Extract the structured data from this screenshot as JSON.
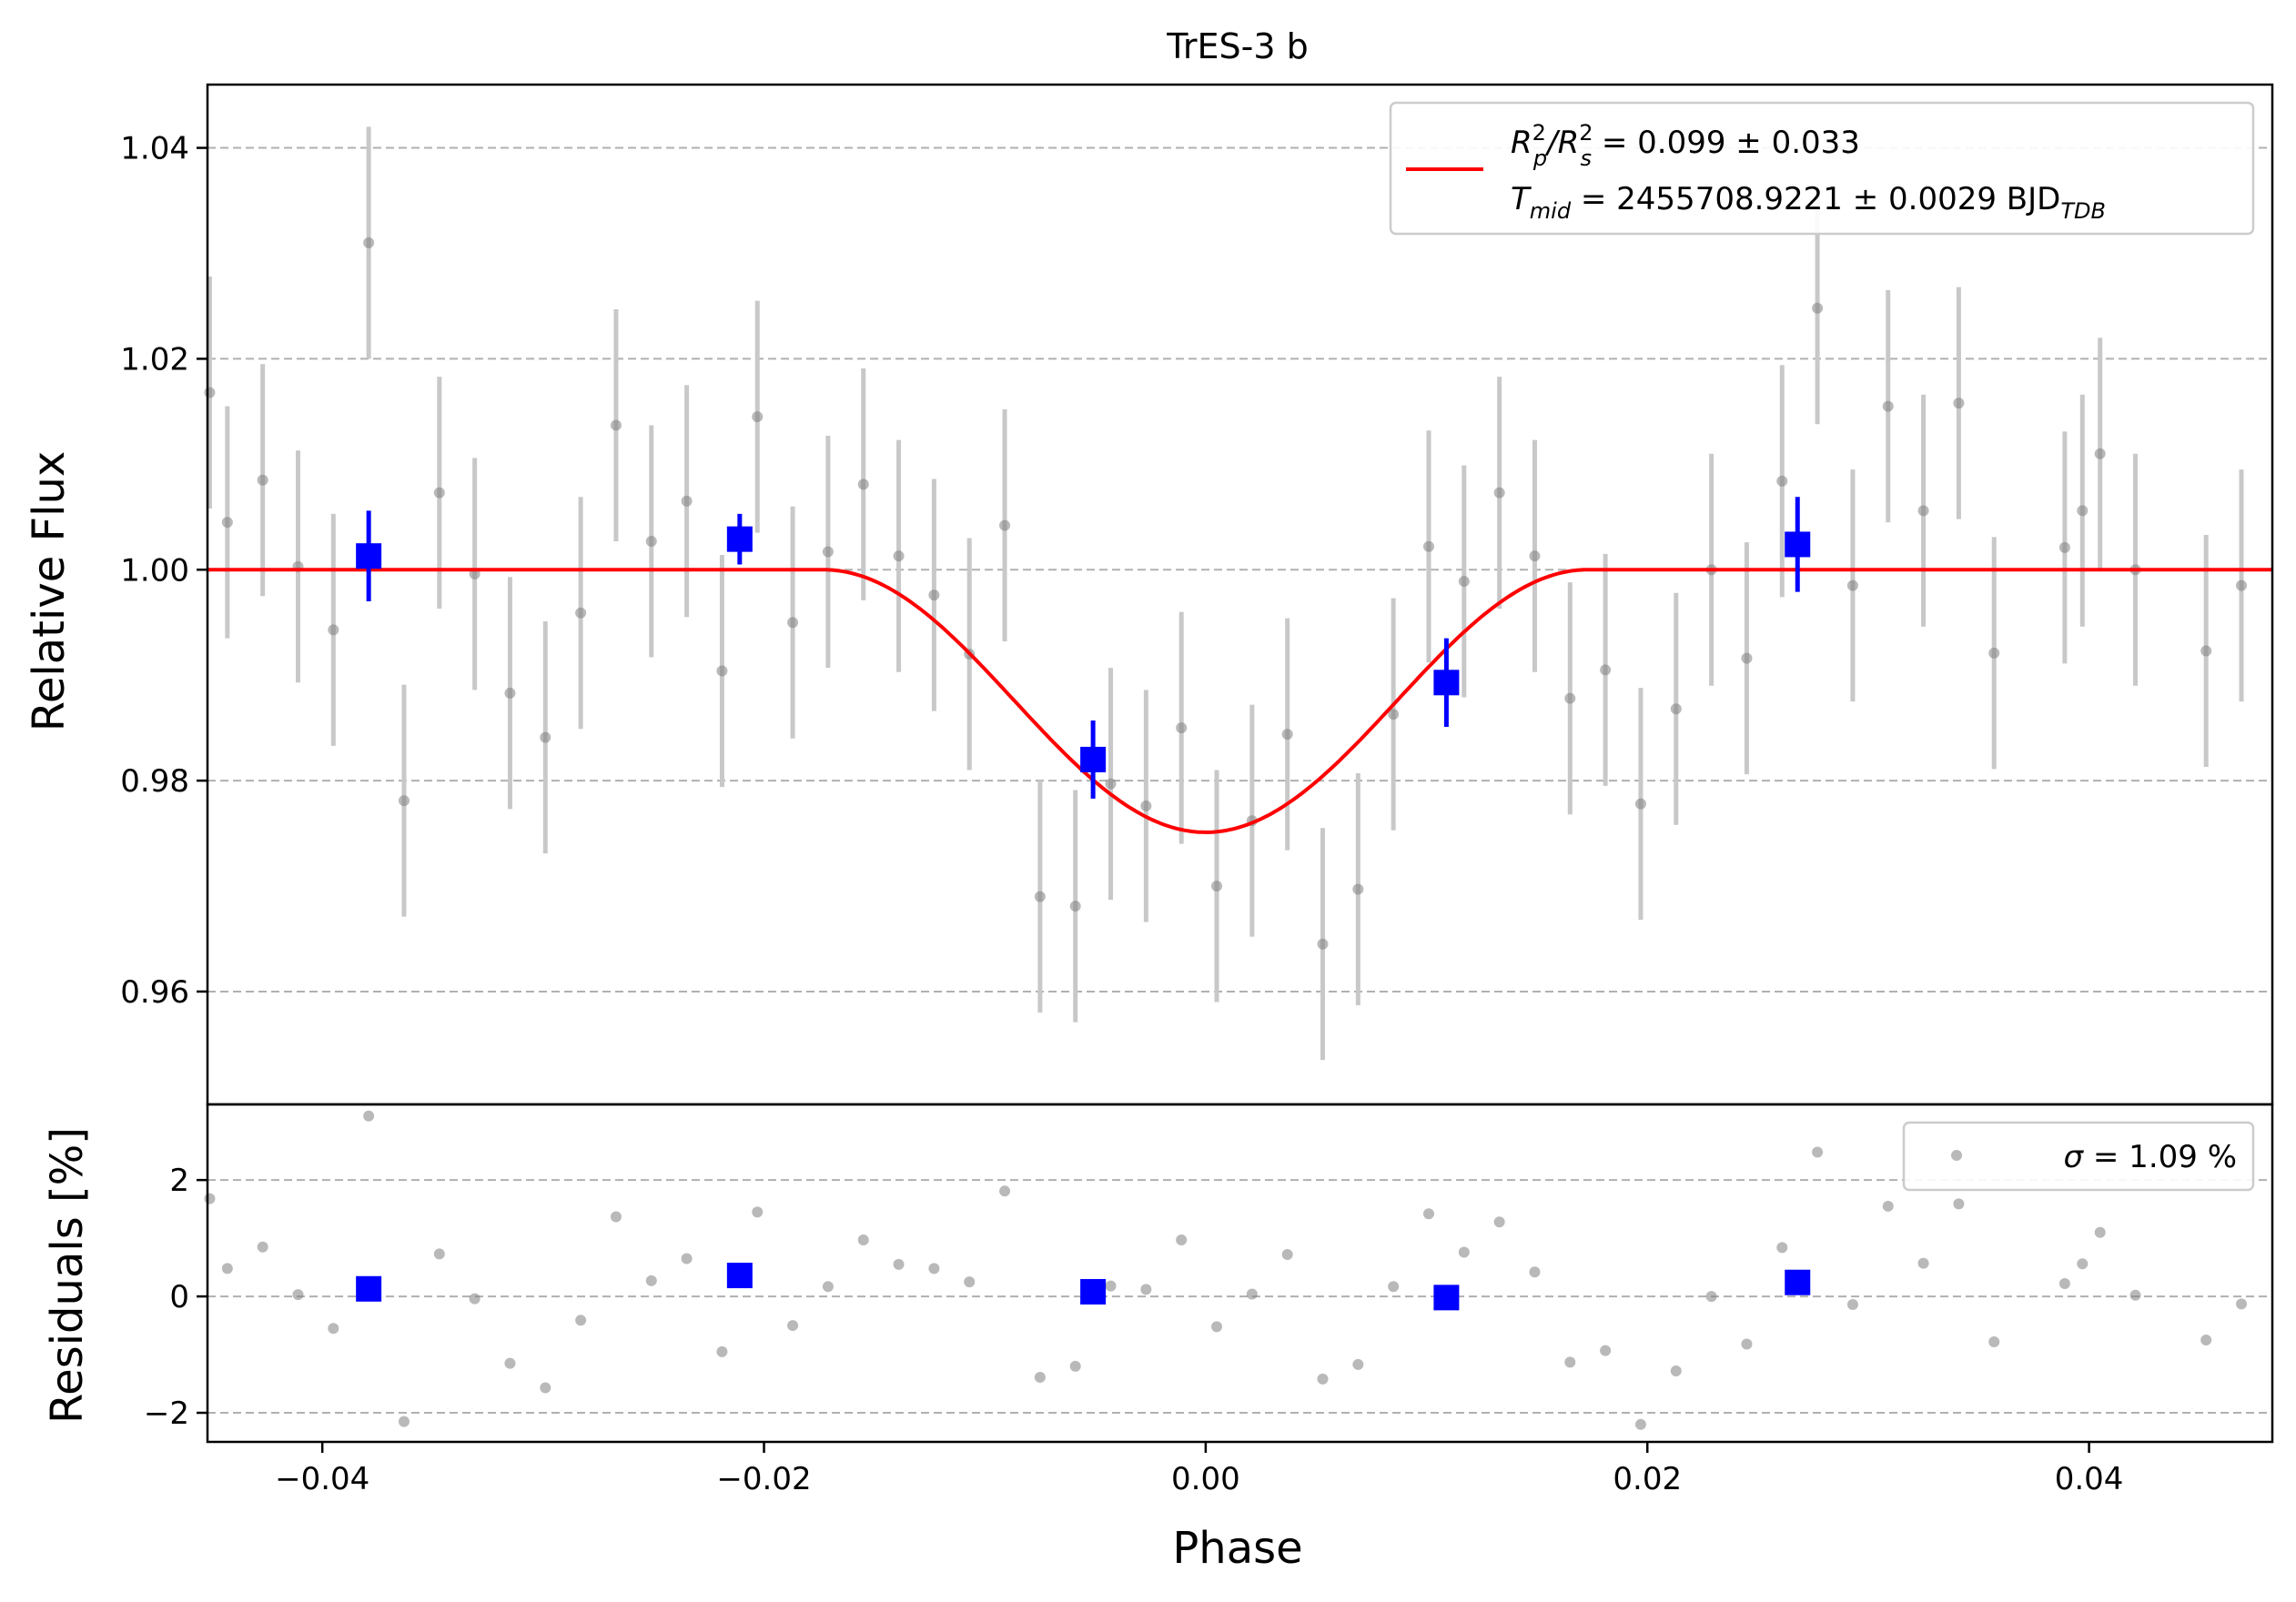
{
  "title": "TrES-3 b",
  "colors": {
    "model": "#ff0000",
    "binned": "#0000ff",
    "data": "#808080",
    "errbar": "#c8c8c8",
    "grid": "#b0b0b0"
  },
  "top_panel": {
    "ylabel": "Relative Flux",
    "yticks": [
      "0.96",
      "0.98",
      "1.00",
      "1.02",
      "1.04"
    ],
    "legend": {
      "line1": {
        "a": "R",
        "a_sup": "2",
        "a_sub": "p",
        "slash": "/R",
        "b_sup": "2",
        "b_sub": "s",
        "value": " = 0.099 ± 0.033"
      },
      "line2": {
        "a": "T",
        "a_sub": "mid",
        "value": " = 2455708.9221 ± 0.0029 BJD",
        "unit_sub": "TDB"
      }
    }
  },
  "bottom_panel": {
    "ylabel": "Residuals [%]",
    "yticks": [
      "−2",
      "0",
      "2"
    ],
    "legend": {
      "sigma": "σ",
      "value": " = 1.09 %"
    }
  },
  "xlabel": "Phase",
  "xticks": [
    "−0.04",
    "−0.02",
    "0.00",
    "0.02",
    "0.04"
  ],
  "chart_data": [
    {
      "type": "scatter",
      "title": "TrES-3 b",
      "xlabel": "",
      "ylabel": "Relative Flux",
      "xlim": [
        -0.0452,
        0.0483
      ],
      "ylim": [
        0.9493,
        1.046
      ],
      "grid": "y-dashed",
      "legend_position": "top-right",
      "series": [
        {
          "name": "data",
          "x": [
            -0.0451,
            -0.0443,
            -0.0427,
            -0.0411,
            -0.0395,
            -0.0363,
            -0.0347,
            -0.0331,
            -0.0315,
            -0.0299,
            -0.0283,
            -0.0267,
            -0.0251,
            -0.0235,
            -0.0219,
            -0.0203,
            -0.0187,
            -0.0171,
            -0.0155,
            -0.0139,
            -0.0123,
            -0.0107,
            -0.0091,
            -0.0075,
            -0.0059,
            -0.0043,
            -0.0027,
            -0.0011,
            0.0005,
            0.0021,
            0.0037,
            0.0053,
            0.0069,
            0.0085,
            0.0101,
            0.0117,
            0.0133,
            0.0149,
            0.0165,
            0.0181,
            0.0197,
            0.0213,
            0.0229,
            0.0245,
            0.0261,
            0.0277,
            0.0293,
            0.0309,
            0.0325,
            0.0341,
            0.0357,
            0.0389,
            0.0397,
            0.0405,
            0.0421,
            0.0453,
            0.0469,
            0.0485,
            -0.0379
          ],
          "y": [
            1.0168,
            1.0045,
            1.0085,
            1.0003,
            0.9943,
            0.9781,
            1.0073,
            0.9996,
            0.9883,
            0.9841,
            0.9959,
            1.0137,
            1.0027,
            1.0065,
            0.9904,
            1.0145,
            0.995,
            1.0017,
            1.0081,
            1.0013,
            0.9976,
            0.992,
            1.0042,
            0.969,
            0.9681,
            0.9797,
            0.9776,
            0.985,
            0.97,
            0.9762,
            0.9844,
            0.9645,
            0.9697,
            0.9863,
            1.0022,
            0.9989,
            1.0073,
            1.0013,
            0.9878,
            0.9905,
            0.9778,
            0.9868,
            1.0,
            0.9916,
            1.0084,
            1.0248,
            0.9985,
            1.0155,
            1.0056,
            1.0158,
            0.9921,
            1.0021,
            1.0056,
            1.011,
            1.0,
            0.9923,
            0.9985,
            0.999,
            1.031
          ],
          "yerr": 0.011
        },
        {
          "name": "binned",
          "x": [
            -0.0379,
            -0.0211,
            -0.0051,
            0.0109,
            0.0268
          ],
          "y": [
            1.0013,
            1.0029,
            0.982,
            0.9893,
            1.0024
          ],
          "yerr": [
            0.0043,
            0.0024,
            0.0037,
            0.0042,
            0.0045
          ]
        },
        {
          "name": "R_p^2/R_s^2 = 0.099 ± 0.033, T_mid = 2455708.9221 ± 0.0029 BJD_TDB",
          "type": "line",
          "model": "transit",
          "depth": 0.0249,
          "half_width": 0.0173,
          "baseline": 1.0
        }
      ]
    },
    {
      "type": "scatter",
      "xlabel": "Phase",
      "ylabel": "Residuals [%]",
      "xlim": [
        -0.0452,
        0.0483
      ],
      "ylim": [
        -2.5,
        3.3
      ],
      "grid": "y-dashed",
      "legend_position": "top-right",
      "series": [
        {
          "name": "σ = 1.09 %",
          "x": [
            -0.0451,
            -0.0443,
            -0.0427,
            -0.0411,
            -0.0395,
            -0.0379,
            -0.0363,
            -0.0347,
            -0.0331,
            -0.0315,
            -0.0299,
            -0.0283,
            -0.0267,
            -0.0251,
            -0.0235,
            -0.0219,
            -0.0203,
            -0.0187,
            -0.0171,
            -0.0155,
            -0.0139,
            -0.0123,
            -0.0107,
            -0.0091,
            -0.0075,
            -0.0059,
            -0.0043,
            -0.0027,
            -0.0011,
            0.0005,
            0.0021,
            0.0037,
            0.0053,
            0.0069,
            0.0085,
            0.0101,
            0.0117,
            0.0133,
            0.0149,
            0.0165,
            0.0181,
            0.0197,
            0.0213,
            0.0229,
            0.0245,
            0.0261,
            0.0277,
            0.0293,
            0.0309,
            0.0325,
            0.0341,
            0.0357,
            0.0389,
            0.0397,
            0.0405,
            0.0421,
            0.0453,
            0.0469,
            0.0485
          ],
          "y": [
            1.68,
            0.48,
            0.85,
            0.03,
            -0.55,
            3.1,
            -2.15,
            0.73,
            -0.04,
            -1.15,
            -1.57,
            -0.41,
            1.37,
            0.27,
            0.65,
            -0.95,
            1.45,
            -0.5,
            0.17,
            0.97,
            0.55,
            0.48,
            0.25,
            1.81,
            -1.39,
            -1.2,
            0.18,
            0.12,
            0.97,
            -0.52,
            0.04,
            0.72,
            -1.42,
            -1.17,
            0.17,
            1.42,
            0.76,
            1.28,
            0.42,
            -1.13,
            -0.93,
            -2.2,
            -1.28,
            0.0,
            -0.82,
            0.84,
            2.48,
            -0.14,
            1.55,
            0.57,
            1.59,
            -0.78,
            0.22,
            0.56,
            1.1,
            0.02,
            -0.75,
            -0.13,
            -0.06
          ]
        },
        {
          "name": "binned",
          "x": [
            -0.0379,
            -0.0211,
            -0.0051,
            0.0109,
            0.0268
          ],
          "y": [
            0.13,
            0.36,
            0.08,
            -0.02,
            0.24
          ]
        }
      ]
    }
  ]
}
